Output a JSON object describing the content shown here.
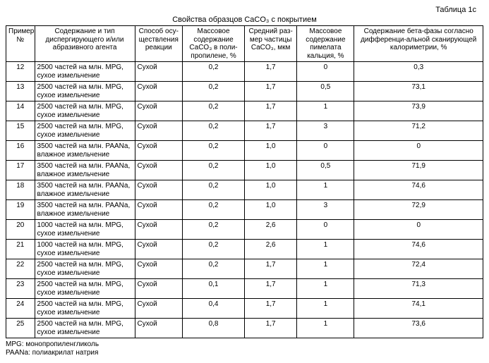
{
  "table_label": "Таблица 1с",
  "title": "Свойства образцов CaCO₃ с покрытием",
  "columns": [
    "Пример №",
    "Содержание и тип диспергирующего и/или абразивного агента",
    "Способ осу-ществления реакции",
    "Массовое содержание CaCO₃ в поли-пропилене, %",
    "Средний раз-мер частицы CaCO₃, мкм",
    "Массовое содержание пимелата кальция, %",
    "Содержание бета-фазы согласно дифференци-альной сканирующей калориметрии, %"
  ],
  "rows": [
    [
      "12",
      "2500 частей на млн. MPG, сухое измельчение",
      "Сухой",
      "0,2",
      "1,7",
      "0",
      "0,3"
    ],
    [
      "13",
      "2500 частей на млн. MPG, сухое измельчение",
      "Сухой",
      "0,2",
      "1,7",
      "0,5",
      "73,1"
    ],
    [
      "14",
      "2500 частей на млн. MPG, сухое измельчение",
      "Сухой",
      "0,2",
      "1,7",
      "1",
      "73,9"
    ],
    [
      "15",
      "2500 частей на млн. MPG, сухое измельчение",
      "Сухой",
      "0,2",
      "1,7",
      "3",
      "71,2"
    ],
    [
      "16",
      "3500 частей на млн. PAANa, влажное измельчение",
      "Сухой",
      "0,2",
      "1,0",
      "0",
      "0"
    ],
    [
      "17",
      "3500 частей на млн. PAANa, влажное измельчение",
      "Сухой",
      "0,2",
      "1,0",
      "0,5",
      "71,9"
    ],
    [
      "18",
      "3500 частей на млн. PAANa, влажное измельчение",
      "Сухой",
      "0,2",
      "1,0",
      "1",
      "74,6"
    ],
    [
      "19",
      "3500 частей на млн. PAANa, влажное измельчение",
      "Сухой",
      "0,2",
      "1,0",
      "3",
      "72,9"
    ],
    [
      "20",
      "1000 частей на млн. MPG, сухое измельчение",
      "Сухой",
      "0,2",
      "2,6",
      "0",
      "0"
    ],
    [
      "21",
      "1000 частей на млн. MPG, сухое измельчение",
      "Сухой",
      "0,2",
      "2,6",
      "1",
      "74,6"
    ],
    [
      "22",
      "2500 частей на млн. MPG, сухое измельчение",
      "Сухой",
      "0,2",
      "1,7",
      "1",
      "72,4"
    ],
    [
      "23",
      "2500 частей на млн. MPG, сухое измельчение",
      "Сухой",
      "0,1",
      "1,7",
      "1",
      "71,3"
    ],
    [
      "24",
      "2500 частей на млн. MPG, сухое измельчение",
      "Сухой",
      "0,4",
      "1,7",
      "1",
      "74,1"
    ],
    [
      "25",
      "2500 частей на млн. MPG, сухое измельчение",
      "Сухой",
      "0,8",
      "1,7",
      "1",
      "73,6"
    ]
  ],
  "footnotes": [
    "MPG: монопропиленгликоль",
    "PAANa: полиакрилат натрия"
  ]
}
